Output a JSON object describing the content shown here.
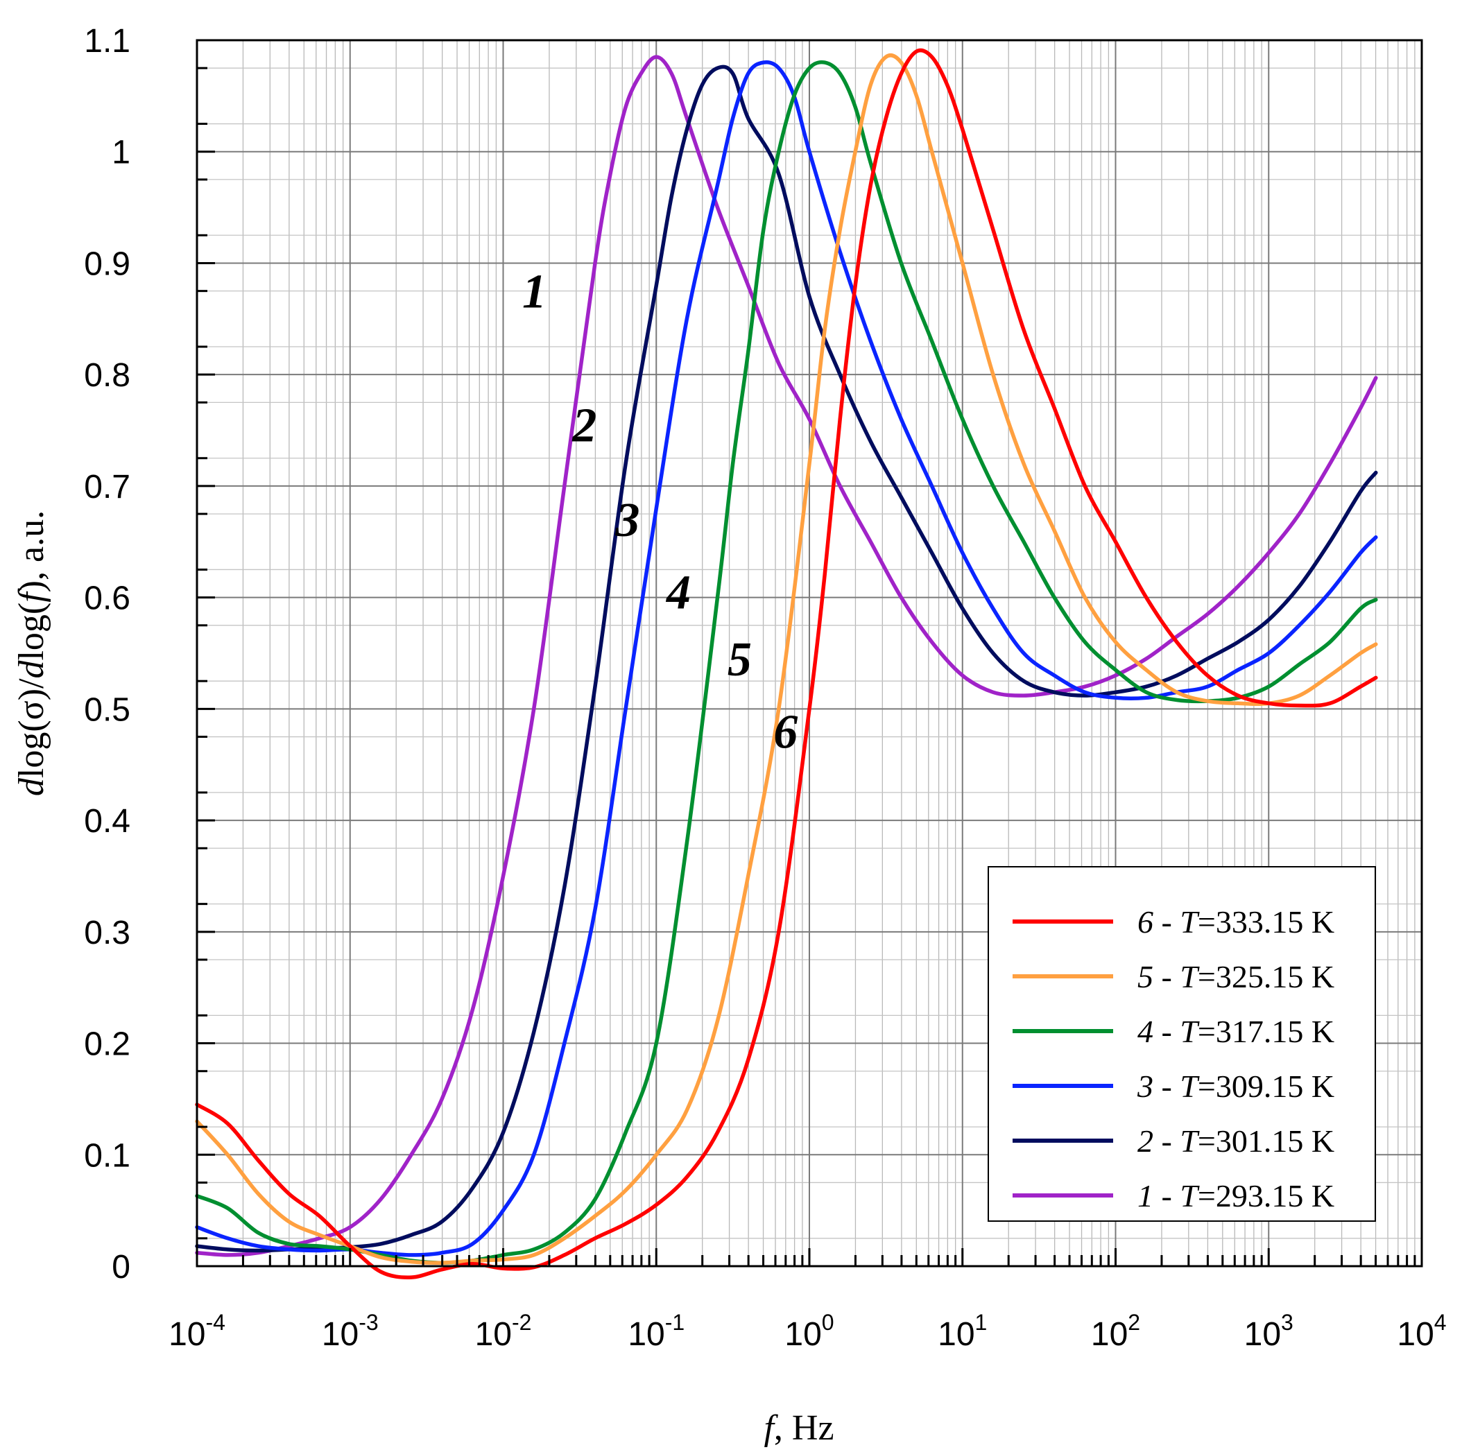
{
  "chart_data": {
    "type": "line",
    "title": "",
    "xlabel": {
      "var": "f",
      "rest": ", Hz"
    },
    "ylabel": {
      "d1": "d",
      "mid1": "log(σ)/",
      "d2": "d",
      "mid2": "log(",
      "f": "f",
      "end": "), a.u."
    },
    "x_scale": "log",
    "xlim": [
      0.0001,
      10000
    ],
    "ylim": [
      0,
      1.1
    ],
    "x_ticks": [
      {
        "base": "10",
        "exp": "-4",
        "value": 0.0001
      },
      {
        "base": "10",
        "exp": "-3",
        "value": 0.001
      },
      {
        "base": "10",
        "exp": "-2",
        "value": 0.01
      },
      {
        "base": "10",
        "exp": "-1",
        "value": 0.1
      },
      {
        "base": "10",
        "exp": "0",
        "value": 1
      },
      {
        "base": "10",
        "exp": "1",
        "value": 10
      },
      {
        "base": "10",
        "exp": "2",
        "value": 100
      },
      {
        "base": "10",
        "exp": "3",
        "value": 1000
      },
      {
        "base": "10",
        "exp": "4",
        "value": 10000
      }
    ],
    "y_ticks": [
      {
        "label": "0",
        "value": 0
      },
      {
        "label": "0.1",
        "value": 0.1
      },
      {
        "label": "0.2",
        "value": 0.2
      },
      {
        "label": "0.3",
        "value": 0.3
      },
      {
        "label": "0.4",
        "value": 0.4
      },
      {
        "label": "0.5",
        "value": 0.5
      },
      {
        "label": "0.6",
        "value": 0.6
      },
      {
        "label": "0.7",
        "value": 0.7
      },
      {
        "label": "0.8",
        "value": 0.8
      },
      {
        "label": "0.9",
        "value": 0.9
      },
      {
        "label": "1",
        "value": 1
      },
      {
        "label": "1.1",
        "value": 1.1
      }
    ],
    "grid": true,
    "legend_position": "bottom-right",
    "series": [
      {
        "num": "6",
        "sep": " - ",
        "tvar": "T",
        "eq": "=333.15 K",
        "color": "#ff0000",
        "label_at": {
          "x": 0.7,
          "y": 0.465
        },
        "points": [
          [
            -4,
            0.145
          ],
          [
            -3.8,
            0.128
          ],
          [
            -3.6,
            0.095
          ],
          [
            -3.4,
            0.065
          ],
          [
            -3.2,
            0.045
          ],
          [
            -3,
            0.018
          ],
          [
            -2.8,
            -0.005
          ],
          [
            -2.6,
            -0.01
          ],
          [
            -2.4,
            -0.003
          ],
          [
            -2.2,
            0.002
          ],
          [
            -2,
            -0.002
          ],
          [
            -1.8,
            -0.001
          ],
          [
            -1.6,
            0.01
          ],
          [
            -1.4,
            0.025
          ],
          [
            -1.2,
            0.038
          ],
          [
            -1,
            0.055
          ],
          [
            -0.8,
            0.08
          ],
          [
            -0.6,
            0.12
          ],
          [
            -0.4,
            0.185
          ],
          [
            -0.2,
            0.3
          ],
          [
            0,
            0.5
          ],
          [
            0.1,
            0.62
          ],
          [
            0.2,
            0.76
          ],
          [
            0.3,
            0.88
          ],
          [
            0.4,
            0.97
          ],
          [
            0.5,
            1.03
          ],
          [
            0.6,
            1.07
          ],
          [
            0.7,
            1.09
          ],
          [
            0.8,
            1.085
          ],
          [
            0.9,
            1.06
          ],
          [
            1,
            1.02
          ],
          [
            1.2,
            0.93
          ],
          [
            1.4,
            0.84
          ],
          [
            1.6,
            0.77
          ],
          [
            1.8,
            0.7
          ],
          [
            2,
            0.65
          ],
          [
            2.2,
            0.6
          ],
          [
            2.4,
            0.56
          ],
          [
            2.6,
            0.53
          ],
          [
            2.8,
            0.512
          ],
          [
            3,
            0.505
          ],
          [
            3.2,
            0.503
          ],
          [
            3.4,
            0.505
          ],
          [
            3.6,
            0.52
          ],
          [
            3.7,
            0.528
          ]
        ]
      },
      {
        "num": "5",
        "sep": " - ",
        "tvar": "T",
        "eq": "=325.15 K",
        "color": "#ffa040",
        "label_at": {
          "x": 0.35,
          "y": 0.53
        },
        "points": [
          [
            -4,
            0.13
          ],
          [
            -3.8,
            0.1
          ],
          [
            -3.6,
            0.065
          ],
          [
            -3.4,
            0.04
          ],
          [
            -3.2,
            0.028
          ],
          [
            -3,
            0.018
          ],
          [
            -2.8,
            0.008
          ],
          [
            -2.6,
            0.004
          ],
          [
            -2.4,
            0.003
          ],
          [
            -2.2,
            0.005
          ],
          [
            -2,
            0.006
          ],
          [
            -1.8,
            0.01
          ],
          [
            -1.6,
            0.025
          ],
          [
            -1.4,
            0.045
          ],
          [
            -1.2,
            0.068
          ],
          [
            -1,
            0.1
          ],
          [
            -0.8,
            0.14
          ],
          [
            -0.6,
            0.22
          ],
          [
            -0.4,
            0.35
          ],
          [
            -0.2,
            0.5
          ],
          [
            0,
            0.72
          ],
          [
            0.1,
            0.84
          ],
          [
            0.2,
            0.93
          ],
          [
            0.3,
            1
          ],
          [
            0.4,
            1.06
          ],
          [
            0.5,
            1.085
          ],
          [
            0.6,
            1.08
          ],
          [
            0.7,
            1.05
          ],
          [
            0.8,
            1
          ],
          [
            1,
            0.9
          ],
          [
            1.2,
            0.8
          ],
          [
            1.4,
            0.72
          ],
          [
            1.6,
            0.66
          ],
          [
            1.8,
            0.6
          ],
          [
            2,
            0.56
          ],
          [
            2.2,
            0.535
          ],
          [
            2.4,
            0.515
          ],
          [
            2.6,
            0.507
          ],
          [
            2.8,
            0.505
          ],
          [
            3,
            0.505
          ],
          [
            3.2,
            0.512
          ],
          [
            3.4,
            0.53
          ],
          [
            3.6,
            0.55
          ],
          [
            3.7,
            0.558
          ]
        ]
      },
      {
        "num": "4",
        "sep": " - ",
        "tvar": "T",
        "eq": "=317.15 K",
        "color": "#008f30",
        "label_at": {
          "x": 0.14,
          "y": 0.59
        },
        "points": [
          [
            -4,
            0.063
          ],
          [
            -3.8,
            0.052
          ],
          [
            -3.6,
            0.03
          ],
          [
            -3.4,
            0.02
          ],
          [
            -3.2,
            0.018
          ],
          [
            -3,
            0.015
          ],
          [
            -2.8,
            0.01
          ],
          [
            -2.6,
            0.005
          ],
          [
            -2.4,
            0.003
          ],
          [
            -2.2,
            0.005
          ],
          [
            -2,
            0.01
          ],
          [
            -1.8,
            0.015
          ],
          [
            -1.6,
            0.03
          ],
          [
            -1.4,
            0.06
          ],
          [
            -1.2,
            0.12
          ],
          [
            -1,
            0.2
          ],
          [
            -0.8,
            0.38
          ],
          [
            -0.6,
            0.6
          ],
          [
            -0.5,
            0.72
          ],
          [
            -0.4,
            0.82
          ],
          [
            -0.3,
            0.93
          ],
          [
            -0.2,
            1
          ],
          [
            -0.1,
            1.05
          ],
          [
            0,
            1.075
          ],
          [
            0.1,
            1.08
          ],
          [
            0.2,
            1.07
          ],
          [
            0.3,
            1.04
          ],
          [
            0.4,
            0.99
          ],
          [
            0.6,
            0.9
          ],
          [
            0.8,
            0.83
          ],
          [
            1,
            0.76
          ],
          [
            1.2,
            0.7
          ],
          [
            1.4,
            0.65
          ],
          [
            1.6,
            0.6
          ],
          [
            1.8,
            0.56
          ],
          [
            2,
            0.535
          ],
          [
            2.2,
            0.515
          ],
          [
            2.4,
            0.508
          ],
          [
            2.6,
            0.507
          ],
          [
            2.8,
            0.51
          ],
          [
            3,
            0.52
          ],
          [
            3.2,
            0.54
          ],
          [
            3.4,
            0.56
          ],
          [
            3.6,
            0.59
          ],
          [
            3.7,
            0.598
          ]
        ]
      },
      {
        "num": "3",
        "sep": " - ",
        "tvar": "T",
        "eq": "=309.15 K",
        "color": "#0a24ff",
        "label_at": {
          "x": 0.065,
          "y": 0.655
        },
        "points": [
          [
            -4,
            0.035
          ],
          [
            -3.8,
            0.025
          ],
          [
            -3.6,
            0.018
          ],
          [
            -3.4,
            0.015
          ],
          [
            -3.2,
            0.014
          ],
          [
            -3,
            0.015
          ],
          [
            -2.8,
            0.012
          ],
          [
            -2.6,
            0.01
          ],
          [
            -2.4,
            0.012
          ],
          [
            -2.2,
            0.02
          ],
          [
            -2,
            0.05
          ],
          [
            -1.8,
            0.1
          ],
          [
            -1.6,
            0.2
          ],
          [
            -1.4,
            0.32
          ],
          [
            -1.2,
            0.5
          ],
          [
            -1,
            0.68
          ],
          [
            -0.8,
            0.85
          ],
          [
            -0.6,
            0.97
          ],
          [
            -0.5,
            1.03
          ],
          [
            -0.4,
            1.07
          ],
          [
            -0.3,
            1.08
          ],
          [
            -0.2,
            1.075
          ],
          [
            -0.1,
            1.05
          ],
          [
            0,
            1
          ],
          [
            0.2,
            0.91
          ],
          [
            0.4,
            0.83
          ],
          [
            0.6,
            0.76
          ],
          [
            0.8,
            0.7
          ],
          [
            1,
            0.64
          ],
          [
            1.2,
            0.59
          ],
          [
            1.4,
            0.55
          ],
          [
            1.6,
            0.53
          ],
          [
            1.8,
            0.515
          ],
          [
            2,
            0.51
          ],
          [
            2.2,
            0.51
          ],
          [
            2.4,
            0.515
          ],
          [
            2.6,
            0.52
          ],
          [
            2.8,
            0.535
          ],
          [
            3,
            0.55
          ],
          [
            3.2,
            0.575
          ],
          [
            3.4,
            0.605
          ],
          [
            3.6,
            0.64
          ],
          [
            3.7,
            0.654
          ]
        ]
      },
      {
        "num": "2",
        "sep": " - ",
        "tvar": "T",
        "eq": "=301.15 K",
        "color": "#000c5e",
        "label_at": {
          "x": 0.034,
          "y": 0.74
        },
        "points": [
          [
            -4,
            0.018
          ],
          [
            -3.8,
            0.015
          ],
          [
            -3.6,
            0.014
          ],
          [
            -3.4,
            0.015
          ],
          [
            -3.2,
            0.016
          ],
          [
            -3,
            0.017
          ],
          [
            -2.8,
            0.02
          ],
          [
            -2.6,
            0.028
          ],
          [
            -2.4,
            0.04
          ],
          [
            -2.2,
            0.07
          ],
          [
            -2,
            0.12
          ],
          [
            -1.8,
            0.21
          ],
          [
            -1.6,
            0.34
          ],
          [
            -1.4,
            0.52
          ],
          [
            -1.2,
            0.72
          ],
          [
            -1,
            0.88
          ],
          [
            -0.9,
            0.96
          ],
          [
            -0.8,
            1.02
          ],
          [
            -0.7,
            1.06
          ],
          [
            -0.6,
            1.075
          ],
          [
            -0.5,
            1.07
          ],
          [
            -0.4,
            1.03
          ],
          [
            -0.2,
            0.98
          ],
          [
            0,
            0.87
          ],
          [
            0.2,
            0.8
          ],
          [
            0.4,
            0.74
          ],
          [
            0.6,
            0.69
          ],
          [
            0.8,
            0.64
          ],
          [
            1,
            0.59
          ],
          [
            1.2,
            0.55
          ],
          [
            1.4,
            0.525
          ],
          [
            1.6,
            0.515
          ],
          [
            1.8,
            0.512
          ],
          [
            2,
            0.515
          ],
          [
            2.2,
            0.52
          ],
          [
            2.4,
            0.53
          ],
          [
            2.6,
            0.545
          ],
          [
            2.8,
            0.56
          ],
          [
            3,
            0.58
          ],
          [
            3.2,
            0.61
          ],
          [
            3.4,
            0.65
          ],
          [
            3.6,
            0.695
          ],
          [
            3.7,
            0.712
          ]
        ]
      },
      {
        "num": "1",
        "sep": " - ",
        "tvar": "T",
        "eq": "=293.15 K",
        "color": "#a023c8",
        "label_at": {
          "x": 0.016,
          "y": 0.86
        },
        "points": [
          [
            -4,
            0.012
          ],
          [
            -3.8,
            0.01
          ],
          [
            -3.6,
            0.012
          ],
          [
            -3.4,
            0.018
          ],
          [
            -3.2,
            0.025
          ],
          [
            -3,
            0.035
          ],
          [
            -2.8,
            0.06
          ],
          [
            -2.6,
            0.1
          ],
          [
            -2.4,
            0.15
          ],
          [
            -2.2,
            0.23
          ],
          [
            -2,
            0.35
          ],
          [
            -1.8,
            0.5
          ],
          [
            -1.6,
            0.7
          ],
          [
            -1.4,
            0.9
          ],
          [
            -1.3,
            0.98
          ],
          [
            -1.2,
            1.04
          ],
          [
            -1.1,
            1.07
          ],
          [
            -1,
            1.085
          ],
          [
            -0.9,
            1.07
          ],
          [
            -0.8,
            1.03
          ],
          [
            -0.6,
            0.95
          ],
          [
            -0.4,
            0.88
          ],
          [
            -0.2,
            0.81
          ],
          [
            0,
            0.76
          ],
          [
            0.2,
            0.7
          ],
          [
            0.4,
            0.65
          ],
          [
            0.6,
            0.6
          ],
          [
            0.8,
            0.56
          ],
          [
            1,
            0.53
          ],
          [
            1.2,
            0.515
          ],
          [
            1.4,
            0.512
          ],
          [
            1.6,
            0.515
          ],
          [
            1.8,
            0.52
          ],
          [
            2,
            0.53
          ],
          [
            2.2,
            0.545
          ],
          [
            2.4,
            0.565
          ],
          [
            2.6,
            0.585
          ],
          [
            2.8,
            0.61
          ],
          [
            3,
            0.64
          ],
          [
            3.2,
            0.675
          ],
          [
            3.4,
            0.72
          ],
          [
            3.6,
            0.77
          ],
          [
            3.7,
            0.797
          ]
        ]
      }
    ]
  }
}
